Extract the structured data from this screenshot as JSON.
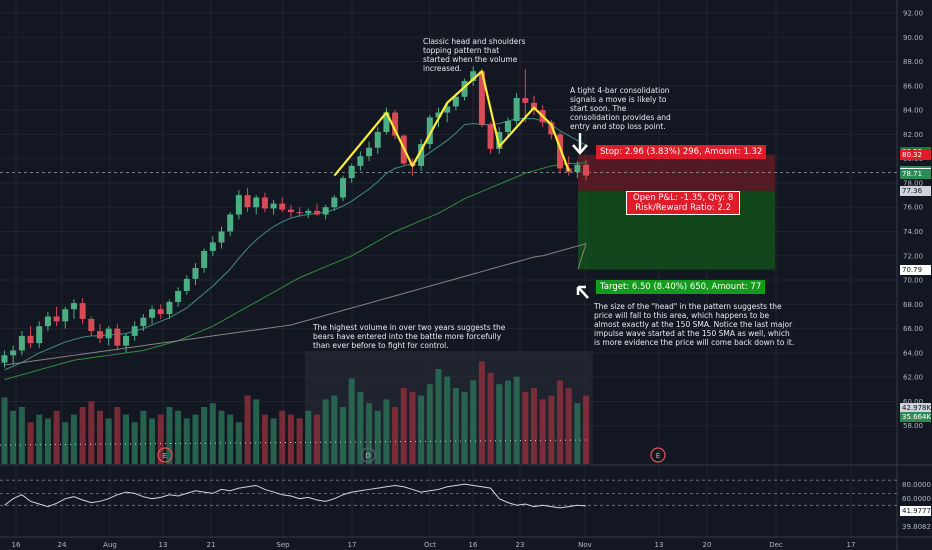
{
  "chart_data": [
    {
      "type": "candlestick",
      "title": "",
      "xlabel": "",
      "ylabel": "",
      "ylim": [
        56,
        92
      ],
      "y_ticks": [
        "92.00",
        "90.00",
        "88.00",
        "86.00",
        "84.00",
        "82.00",
        "80.00",
        "78.00",
        "76.00",
        "74.00",
        "72.00",
        "70.00",
        "68.00",
        "66.00",
        "64.00",
        "62.00",
        "60.00",
        "58.00"
      ],
      "x_ticks": [
        "16",
        "24",
        "Aug",
        "13",
        "21",
        "Sep",
        "17",
        "Oct",
        "16",
        "23",
        "Nov",
        "13",
        "20",
        "Dec",
        "17"
      ],
      "candles": [
        {
          "o": 63.2,
          "h": 64.2,
          "l": 62.8,
          "c": 63.8
        },
        {
          "o": 63.8,
          "h": 64.6,
          "l": 63.0,
          "c": 64.2
        },
        {
          "o": 64.2,
          "h": 65.8,
          "l": 63.8,
          "c": 65.4
        },
        {
          "o": 65.4,
          "h": 66.2,
          "l": 64.4,
          "c": 64.8
        },
        {
          "o": 64.8,
          "h": 66.6,
          "l": 64.4,
          "c": 66.2
        },
        {
          "o": 66.2,
          "h": 67.4,
          "l": 65.8,
          "c": 67.0
        },
        {
          "o": 67.0,
          "h": 67.8,
          "l": 66.2,
          "c": 66.6
        },
        {
          "o": 66.6,
          "h": 67.8,
          "l": 66.0,
          "c": 67.6
        },
        {
          "o": 67.6,
          "h": 68.4,
          "l": 66.8,
          "c": 68.1
        },
        {
          "o": 68.1,
          "h": 68.5,
          "l": 66.4,
          "c": 66.8
        },
        {
          "o": 66.8,
          "h": 67.0,
          "l": 65.4,
          "c": 65.8
        },
        {
          "o": 65.8,
          "h": 66.4,
          "l": 64.8,
          "c": 65.2
        },
        {
          "o": 65.2,
          "h": 66.2,
          "l": 64.6,
          "c": 66.0
        },
        {
          "o": 66.0,
          "h": 66.4,
          "l": 64.2,
          "c": 64.6
        },
        {
          "o": 64.6,
          "h": 65.6,
          "l": 64.0,
          "c": 65.4
        },
        {
          "o": 65.4,
          "h": 66.6,
          "l": 65.0,
          "c": 66.2
        },
        {
          "o": 66.2,
          "h": 67.2,
          "l": 65.8,
          "c": 66.9
        },
        {
          "o": 66.9,
          "h": 67.9,
          "l": 66.4,
          "c": 67.6
        },
        {
          "o": 67.6,
          "h": 68.0,
          "l": 66.8,
          "c": 67.2
        },
        {
          "o": 67.2,
          "h": 68.4,
          "l": 66.8,
          "c": 68.2
        },
        {
          "o": 68.2,
          "h": 69.4,
          "l": 67.8,
          "c": 69.1
        },
        {
          "o": 69.1,
          "h": 70.4,
          "l": 68.8,
          "c": 70.1
        },
        {
          "o": 70.1,
          "h": 71.4,
          "l": 69.6,
          "c": 71.0
        },
        {
          "o": 71.0,
          "h": 72.6,
          "l": 70.6,
          "c": 72.4
        },
        {
          "o": 72.4,
          "h": 73.6,
          "l": 72.0,
          "c": 73.1
        },
        {
          "o": 73.1,
          "h": 74.4,
          "l": 72.6,
          "c": 74.0
        },
        {
          "o": 74.0,
          "h": 75.6,
          "l": 73.6,
          "c": 75.4
        },
        {
          "o": 75.4,
          "h": 77.4,
          "l": 75.0,
          "c": 77.0
        },
        {
          "o": 77.0,
          "h": 77.6,
          "l": 75.6,
          "c": 76.0
        },
        {
          "o": 76.0,
          "h": 77.0,
          "l": 75.4,
          "c": 76.8
        },
        {
          "o": 76.8,
          "h": 77.2,
          "l": 75.6,
          "c": 75.9
        },
        {
          "o": 75.9,
          "h": 76.6,
          "l": 75.4,
          "c": 76.3
        },
        {
          "o": 76.3,
          "h": 76.8,
          "l": 75.6,
          "c": 75.8
        },
        {
          "o": 75.8,
          "h": 76.2,
          "l": 75.2,
          "c": 75.6
        },
        {
          "o": 75.6,
          "h": 76.0,
          "l": 75.2,
          "c": 75.5
        },
        {
          "o": 75.5,
          "h": 75.9,
          "l": 75.1,
          "c": 75.7
        },
        {
          "o": 75.7,
          "h": 76.3,
          "l": 75.3,
          "c": 75.4
        },
        {
          "o": 75.4,
          "h": 76.2,
          "l": 75.0,
          "c": 76.0
        },
        {
          "o": 76.0,
          "h": 77.0,
          "l": 75.7,
          "c": 76.8
        },
        {
          "o": 76.8,
          "h": 78.6,
          "l": 76.5,
          "c": 78.4
        },
        {
          "o": 78.4,
          "h": 79.6,
          "l": 78.0,
          "c": 79.4
        },
        {
          "o": 79.4,
          "h": 80.6,
          "l": 79.0,
          "c": 80.2
        },
        {
          "o": 80.2,
          "h": 81.4,
          "l": 79.8,
          "c": 80.9
        },
        {
          "o": 80.9,
          "h": 82.6,
          "l": 80.4,
          "c": 82.2
        },
        {
          "o": 82.2,
          "h": 84.2,
          "l": 82.0,
          "c": 83.8
        },
        {
          "o": 83.8,
          "h": 84.0,
          "l": 81.6,
          "c": 81.9
        },
        {
          "o": 81.9,
          "h": 82.0,
          "l": 79.4,
          "c": 79.6
        },
        {
          "o": 79.6,
          "h": 80.0,
          "l": 78.6,
          "c": 79.4
        },
        {
          "o": 79.4,
          "h": 81.6,
          "l": 79.0,
          "c": 81.2
        },
        {
          "o": 81.2,
          "h": 83.6,
          "l": 80.8,
          "c": 83.4
        },
        {
          "o": 83.4,
          "h": 84.2,
          "l": 82.6,
          "c": 83.8
        },
        {
          "o": 83.8,
          "h": 84.6,
          "l": 83.0,
          "c": 84.3
        },
        {
          "o": 84.3,
          "h": 85.4,
          "l": 84.0,
          "c": 85.1
        },
        {
          "o": 85.1,
          "h": 86.6,
          "l": 84.8,
          "c": 86.4
        },
        {
          "o": 86.4,
          "h": 87.6,
          "l": 86.0,
          "c": 87.2
        },
        {
          "o": 87.2,
          "h": 87.4,
          "l": 82.6,
          "c": 82.8
        },
        {
          "o": 82.8,
          "h": 83.0,
          "l": 80.4,
          "c": 80.8
        },
        {
          "o": 80.8,
          "h": 82.6,
          "l": 80.4,
          "c": 82.2
        },
        {
          "o": 82.2,
          "h": 83.4,
          "l": 81.8,
          "c": 83.1
        },
        {
          "o": 83.1,
          "h": 85.4,
          "l": 82.8,
          "c": 85.0
        },
        {
          "o": 85.0,
          "h": 87.4,
          "l": 83.0,
          "c": 84.6
        },
        {
          "o": 84.6,
          "h": 85.2,
          "l": 83.6,
          "c": 84.0
        },
        {
          "o": 84.0,
          "h": 84.4,
          "l": 82.6,
          "c": 83.0
        },
        {
          "o": 83.0,
          "h": 83.2,
          "l": 81.6,
          "c": 82.0
        },
        {
          "o": 82.0,
          "h": 82.2,
          "l": 78.8,
          "c": 79.2
        },
        {
          "o": 79.2,
          "h": 80.2,
          "l": 78.6,
          "c": 78.9
        },
        {
          "o": 78.9,
          "h": 79.8,
          "l": 78.4,
          "c": 79.5
        },
        {
          "o": 79.5,
          "h": 79.9,
          "l": 78.2,
          "c": 78.6
        }
      ],
      "series": [
        {
          "type": "line",
          "values": [
            62.6,
            62.9,
            63.2,
            63.6,
            64.0,
            64.3,
            64.6,
            64.9,
            65.1,
            65.3,
            65.4,
            65.4,
            65.5,
            65.5,
            65.6,
            65.8,
            66.0,
            66.3,
            66.6,
            66.9,
            67.3,
            67.7,
            68.3,
            68.9,
            69.5,
            70.2,
            70.9,
            71.8,
            72.6,
            73.3,
            73.9,
            74.4,
            74.8,
            75.1,
            75.3,
            75.4,
            75.5,
            75.6,
            75.8,
            76.1,
            76.5,
            77.0,
            77.5,
            78.1,
            78.8,
            79.2,
            79.4,
            79.6,
            80.0,
            80.5,
            81.0,
            81.5,
            82.1,
            82.8,
            82.9,
            82.8,
            82.8,
            82.9,
            83.1,
            83.3,
            83.3,
            83.3,
            83.1,
            82.8,
            82.3,
            81.9,
            81.5,
            81.1
          ]
        },
        {
          "type": "line",
          "values": [
            61.8,
            62.0,
            62.2,
            62.4,
            62.6,
            62.8,
            63.0,
            63.2,
            63.4,
            63.5,
            63.6,
            63.7,
            63.8,
            63.9,
            64.0,
            64.1,
            64.2,
            64.4,
            64.6,
            64.8,
            65.0,
            65.3,
            65.6,
            65.9,
            66.2,
            66.6,
            67.0,
            67.4,
            67.8,
            68.2,
            68.6,
            69.0,
            69.4,
            69.8,
            70.2,
            70.5,
            70.8,
            71.1,
            71.4,
            71.7,
            72.0,
            72.4,
            72.8,
            73.2,
            73.6,
            74.0,
            74.3,
            74.6,
            74.9,
            75.2,
            75.5,
            75.9,
            76.3,
            76.7,
            77.0,
            77.3,
            77.6,
            77.9,
            78.2,
            78.5,
            78.8,
            79.0,
            79.2,
            79.4,
            79.5,
            79.6,
            79.6,
            79.7
          ]
        },
        {
          "type": "line",
          "values": [
            63.0,
            63.1,
            63.2,
            63.3,
            63.4,
            63.5,
            63.6,
            63.7,
            63.8,
            63.9,
            64.0,
            64.1,
            64.2,
            64.3,
            64.4,
            64.5,
            64.6,
            64.7,
            64.8,
            64.9,
            65.0,
            65.1,
            65.2,
            65.3,
            65.4,
            65.5,
            65.6,
            65.7,
            65.8,
            65.9,
            66.0,
            66.1,
            66.2,
            66.3,
            66.5,
            66.7,
            66.9,
            67.1,
            67.3,
            67.5,
            67.7,
            67.9,
            68.1,
            68.3,
            68.5,
            68.7,
            68.9,
            69.1,
            69.3,
            69.5,
            69.7,
            69.9,
            70.1,
            70.3,
            70.5,
            70.7,
            70.9,
            71.1,
            71.3,
            71.5,
            71.7,
            71.9,
            72.0,
            72.2,
            72.4,
            72.6,
            72.8,
            73.0
          ]
        }
      ],
      "price_levels": [
        "92.00",
        "80.53",
        "80.32",
        "79.00",
        "78.85",
        "78.71",
        "77.36",
        "70.86",
        "70.79"
      ],
      "volume_labels": [
        "42.978K",
        "35.664K"
      ],
      "volume": [
        35,
        28,
        30,
        22,
        26,
        24,
        28,
        22,
        26,
        30,
        33,
        28,
        24,
        30,
        26,
        22,
        28,
        24,
        26,
        30,
        28,
        24,
        26,
        30,
        32,
        28,
        26,
        22,
        36,
        34,
        26,
        24,
        28,
        26,
        24,
        28,
        26,
        34,
        36,
        30,
        45,
        38,
        32,
        28,
        34,
        30,
        40,
        38,
        36,
        42,
        50,
        46,
        40,
        38,
        44,
        54,
        48,
        42,
        44,
        46,
        38,
        40,
        34,
        36,
        44,
        40,
        32,
        36
      ],
      "rsi": {
        "labels": [
          "80.0000",
          "60.0000",
          "41.9777",
          "39.8082"
        ],
        "values": [
          42,
          52,
          58,
          48,
          44,
          40,
          45,
          52,
          55,
          50,
          46,
          48,
          52,
          58,
          62,
          60,
          55,
          52,
          54,
          58,
          56,
          60,
          64,
          62,
          60,
          66,
          64,
          68,
          70,
          72,
          66,
          62,
          58,
          56,
          52,
          54,
          50,
          48,
          52,
          58,
          62,
          64,
          66,
          68,
          70,
          72,
          70,
          66,
          62,
          64,
          66,
          70,
          72,
          74,
          72,
          70,
          68,
          52,
          46,
          42,
          44,
          40,
          42,
          40,
          38,
          40,
          42,
          41
        ]
      },
      "event_markers": [
        "E",
        "D",
        "E"
      ]
    }
  ],
  "annotations": {
    "pattern_note": "Classic head and shoulders\ntopping pattern that\nstarted when the volume\nincreased.",
    "consolidation_note": "A tight 4-bar consolidation\nsignals a move is likely to\nstart soon.  The\nconsolidation provides and\nentry and stop loss point.",
    "volume_note": "The highest volume in over two years suggests the\nbears have entered into the battle more forcefully\nthan ever before to fight for control.",
    "target_note": "The size of the \"head\" in the pattern suggests the\nprice will fall to this area, which happens to be\nalmost exactly at the 150 SMA.  Notice the last major\nimpulse wave started at the 150 SMA as well, which\nis more evidence the price will come back down to it."
  },
  "position": {
    "stop_label": "Stop: 2.96 (3.83%) 296, Amount: 1.32",
    "pnl_line1": "Open P&L: -1.35, Qty: 8",
    "pnl_line2": "Risk/Reward Ratio: 2.2",
    "target_label": "Target: 6.50 (8.40%) 650, Amount: 77"
  },
  "colors": {
    "background": "#131722",
    "up": "#4caf83",
    "down": "#d84b57",
    "head_shoulders_line": "#ffee33",
    "sma_fast": "#3f8a82",
    "sma_mid": "#2f8f3b",
    "sma_slow": "#8a8185"
  }
}
